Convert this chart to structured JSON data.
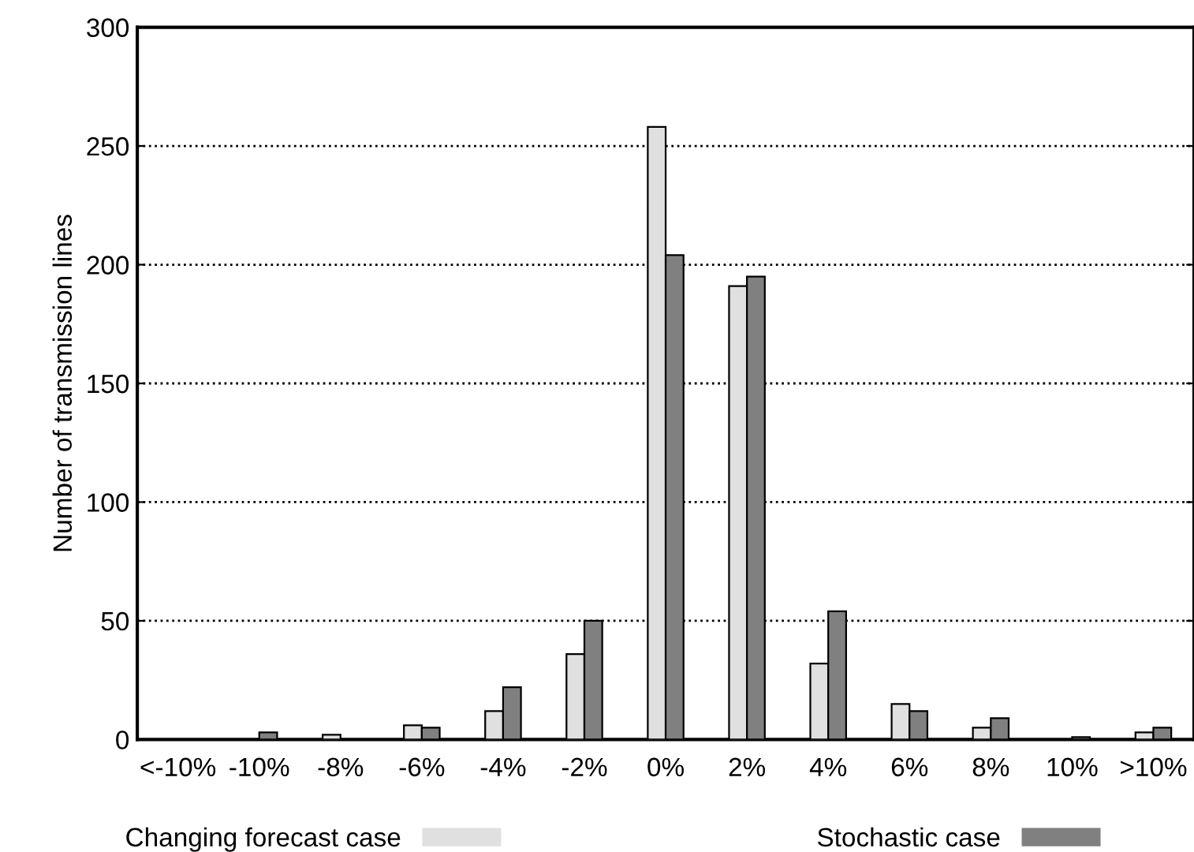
{
  "chart_data": {
    "type": "bar",
    "ylabel": "Number of transmission lines",
    "categories": [
      "<-10%",
      "-10%",
      "-8%",
      "-6%",
      "-4%",
      "-2%",
      "0%",
      "2%",
      "4%",
      "6%",
      "8%",
      "10%",
      ">10%"
    ],
    "series": [
      {
        "name": "Changing forecast case",
        "color": "#e0e0e0",
        "values": [
          0,
          0,
          2,
          6,
          12,
          36,
          258,
          191,
          32,
          15,
          5,
          0,
          3
        ]
      },
      {
        "name": "Stochastic case",
        "color": "#808080",
        "values": [
          0,
          3,
          0,
          5,
          22,
          50,
          204,
          195,
          54,
          12,
          9,
          1,
          5
        ]
      }
    ],
    "ylim": [
      0,
      300
    ],
    "yticks": [
      0,
      50,
      100,
      150,
      200,
      250,
      300
    ],
    "grid": "y",
    "legend": "bottom"
  }
}
